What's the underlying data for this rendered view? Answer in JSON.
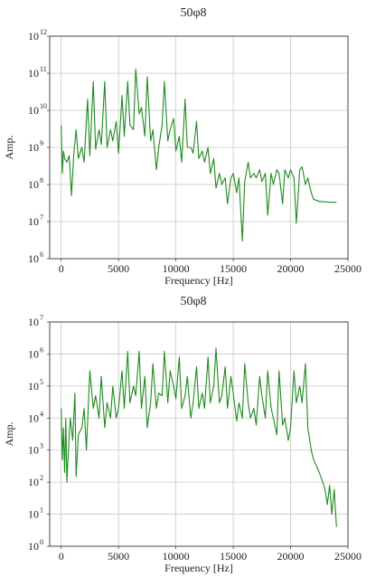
{
  "colors": {
    "line": "#1e8b1e",
    "grid": "#c8c8c8",
    "frame": "#444444"
  },
  "chart_data": [
    {
      "type": "line",
      "title": "50φ8",
      "xlabel": "Frequency [Hz]",
      "ylabel": "Amp.",
      "xlim": [
        -1000,
        25000
      ],
      "ylim": [
        1000000.0,
        1000000000000.0
      ],
      "yscale": "log",
      "grid": true,
      "xticks": [
        {
          "value": 0,
          "label": "0"
        },
        {
          "value": 5000,
          "label": "5000"
        },
        {
          "value": 10000,
          "label": "10000"
        },
        {
          "value": 15000,
          "label": "15000"
        },
        {
          "value": 20000,
          "label": "20000"
        },
        {
          "value": 25000,
          "label": "25000"
        }
      ],
      "yticks": [
        {
          "value": 1000000.0,
          "base": "10",
          "exp": "6"
        },
        {
          "value": 10000000.0,
          "base": "10",
          "exp": "7"
        },
        {
          "value": 100000000.0,
          "base": "10",
          "exp": "8"
        },
        {
          "value": 1000000000.0,
          "base": "10",
          "exp": "9"
        },
        {
          "value": 10000000000.0,
          "base": "10",
          "exp": "10"
        },
        {
          "value": 100000000000.0,
          "base": "10",
          "exp": "11"
        },
        {
          "value": 1000000000000.0,
          "base": "10",
          "exp": "12"
        }
      ],
      "series": [
        {
          "x": [
            0,
            100,
            200,
            300,
            500,
            700,
            900,
            1100,
            1300,
            1500,
            1800,
            2000,
            2300,
            2500,
            2800,
            3000,
            3300,
            3500,
            3800,
            4000,
            4300,
            4500,
            4800,
            5000,
            5300,
            5500,
            5800,
            6000,
            6300,
            6500,
            6800,
            7000,
            7300,
            7500,
            7800,
            8000,
            8300,
            8500,
            8800,
            9000,
            9300,
            9500,
            9800,
            10000,
            10300,
            10500,
            10800,
            11000,
            11300,
            11500,
            11800,
            12000,
            12300,
            12500,
            12800,
            13000,
            13300,
            13500,
            13800,
            14000,
            14300,
            14500,
            14800,
            15000,
            15300,
            15500,
            15800,
            16000,
            16300,
            16500,
            16800,
            17000,
            17300,
            17500,
            17800,
            18000,
            18300,
            18500,
            18800,
            19000,
            19300,
            19500,
            19800,
            20000,
            20300,
            20500,
            20800,
            21000,
            21300,
            21500,
            21800,
            22000,
            22500,
            23000,
            23500,
            24000
          ],
          "y": [
            4000000000.0,
            200000000.0,
            800000000.0,
            500000000.0,
            400000000.0,
            600000000.0,
            50000000.0,
            700000000.0,
            3000000000.0,
            500000000.0,
            1000000000.0,
            400000000.0,
            20000000000.0,
            600000000.0,
            60000000000.0,
            900000000.0,
            3000000000.0,
            1200000000.0,
            60000000000.0,
            1000000000.0,
            3000000000.0,
            1500000000.0,
            5000000000.0,
            700000000.0,
            25000000000.0,
            2000000000.0,
            60000000000.0,
            4000000000.0,
            3000000000.0,
            130000000000.0,
            8000000000.0,
            12000000000.0,
            2000000000.0,
            80000000000.0,
            1500000000.0,
            3000000000.0,
            250000000.0,
            1000000000.0,
            4000000000.0,
            60000000000.0,
            1500000000.0,
            3000000000.0,
            6000000000.0,
            800000000.0,
            2000000000.0,
            400000000.0,
            20000000000.0,
            1000000000.0,
            1000000000.0,
            700000000.0,
            5000000000.0,
            500000000.0,
            800000000.0,
            400000000.0,
            1000000000.0,
            200000000.0,
            500000000.0,
            80000000.0,
            200000000.0,
            100000000.0,
            150000000.0,
            30000000.0,
            150000000.0,
            200000000.0,
            60000000.0,
            150000000.0,
            3000000.0,
            120000000.0,
            400000000.0,
            150000000.0,
            200000000.0,
            150000000.0,
            250000000.0,
            120000000.0,
            200000000.0,
            15000000.0,
            200000000.0,
            100000000.0,
            250000000.0,
            200000000.0,
            30000000.0,
            250000000.0,
            150000000.0,
            250000000.0,
            150000000.0,
            9000000.0,
            250000000.0,
            300000000.0,
            100000000.0,
            150000000.0,
            60000000.0,
            40000000.0,
            35000000.0,
            34000000.0,
            33000000.0,
            33000000.0
          ]
        }
      ]
    },
    {
      "type": "line",
      "title": "50φ8",
      "xlabel": "Frequency [Hz]",
      "ylabel": "Amp.",
      "xlim": [
        -1000,
        25000
      ],
      "ylim": [
        1,
        10000000.0
      ],
      "yscale": "log",
      "grid": true,
      "xticks": [
        {
          "value": 0,
          "label": "0"
        },
        {
          "value": 5000,
          "label": "5000"
        },
        {
          "value": 10000,
          "label": "10000"
        },
        {
          "value": 15000,
          "label": "15000"
        },
        {
          "value": 20000,
          "label": "20000"
        },
        {
          "value": 25000,
          "label": "25000"
        }
      ],
      "yticks": [
        {
          "value": 1,
          "base": "10",
          "exp": "0"
        },
        {
          "value": 10,
          "base": "10",
          "exp": "1"
        },
        {
          "value": 100,
          "base": "10",
          "exp": "2"
        },
        {
          "value": 1000,
          "base": "10",
          "exp": "3"
        },
        {
          "value": 10000,
          "base": "10",
          "exp": "4"
        },
        {
          "value": 100000,
          "base": "10",
          "exp": "5"
        },
        {
          "value": 1000000,
          "base": "10",
          "exp": "6"
        },
        {
          "value": 10000000,
          "base": "10",
          "exp": "7"
        }
      ],
      "series": [
        {
          "x": [
            0,
            100,
            200,
            300,
            400,
            500,
            700,
            800,
            1000,
            1200,
            1300,
            1500,
            1800,
            2000,
            2200,
            2500,
            2800,
            3000,
            3300,
            3500,
            3800,
            4000,
            4300,
            4500,
            4800,
            5000,
            5300,
            5500,
            5800,
            6000,
            6300,
            6500,
            6800,
            7000,
            7300,
            7500,
            7800,
            8000,
            8300,
            8500,
            8800,
            9000,
            9300,
            9500,
            9800,
            10000,
            10300,
            10500,
            10800,
            11000,
            11300,
            11500,
            11800,
            12000,
            12300,
            12500,
            12800,
            13000,
            13300,
            13500,
            13800,
            14000,
            14300,
            14500,
            14800,
            15000,
            15300,
            15500,
            15800,
            16000,
            16300,
            16500,
            16800,
            17000,
            17300,
            17500,
            17800,
            18000,
            18300,
            18500,
            18800,
            19000,
            19300,
            19500,
            19800,
            20000,
            20300,
            20500,
            20800,
            21000,
            21300,
            21500,
            21800,
            22000,
            22300,
            22500,
            22800,
            23000,
            23200,
            23400,
            23600,
            23800,
            24000
          ],
          "y": [
            20000.0,
            500,
            5000,
            200,
            10000.0,
            100,
            3000,
            10000.0,
            2000.0,
            60000.0,
            150,
            3000.0,
            5000.0,
            20000.0,
            1000.0,
            300000.0,
            20000.0,
            50000.0,
            10000.0,
            200000.0,
            5000.0,
            30000.0,
            10000.0,
            100000.0,
            10000.0,
            20000.0,
            300000.0,
            20000.0,
            1200000.0,
            30000.0,
            100000.0,
            50000.0,
            1200000.0,
            20000.0,
            200000.0,
            5000.0,
            30000.0,
            500000.0,
            20000.0,
            60000.0,
            50000.0,
            1200000.0,
            30000.0,
            300000.0,
            100000.0,
            40000.0,
            800000.0,
            20000.0,
            50000.0,
            200000.0,
            10000.0,
            30000.0,
            400000.0,
            20000.0,
            60000.0,
            20000.0,
            800000.0,
            30000.0,
            100000.0,
            1500000.0,
            30000.0,
            50000.0,
            400000.0,
            20000.0,
            200000.0,
            60000.0,
            8000.0,
            30000.0,
            10000.0,
            500000.0,
            30000.0,
            10000.0,
            20000.0,
            6000.0,
            200000.0,
            50000.0,
            10000.0,
            300000.0,
            20000.0,
            10000.0,
            3000.0,
            300000.0,
            6000.0,
            10000.0,
            2000.0,
            5000.0,
            300000.0,
            30000.0,
            100000.0,
            30000.0,
            500000.0,
            5000.0,
            1000.0,
            500,
            300,
            200,
            100,
            60,
            20,
            80,
            10,
            60,
            4
          ]
        }
      ]
    }
  ]
}
